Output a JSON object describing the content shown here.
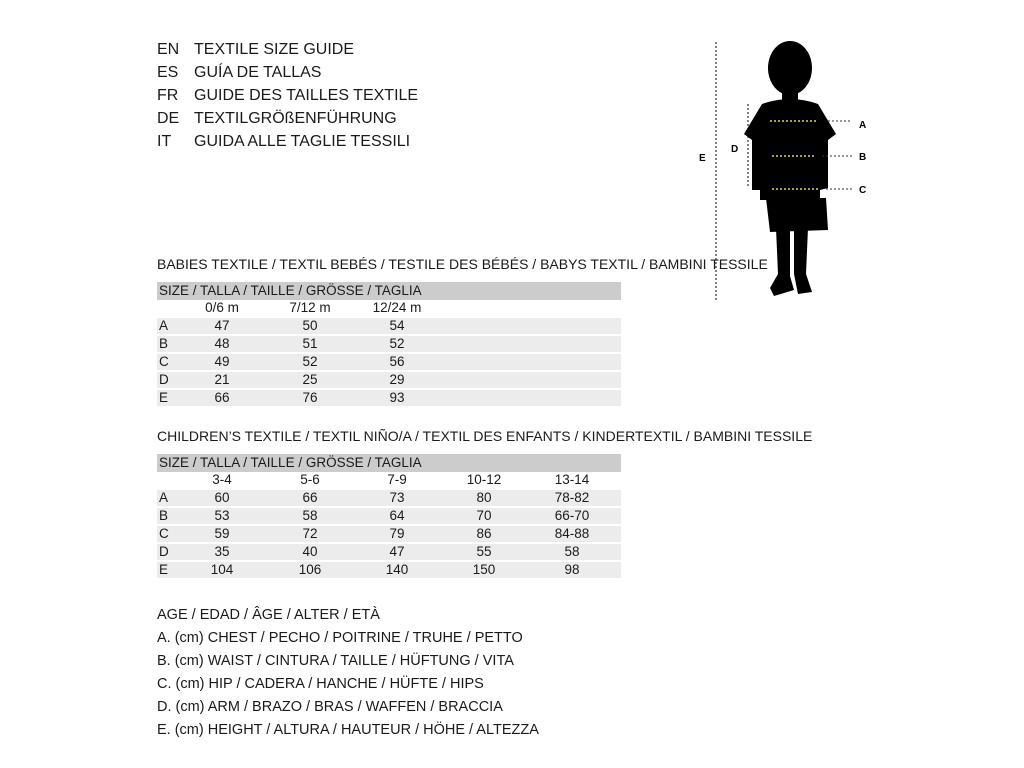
{
  "guide_titles": [
    {
      "lang": "EN",
      "title": "TEXTILE SIZE GUIDE"
    },
    {
      "lang": "ES",
      "title": "GUÍA DE TALLAS"
    },
    {
      "lang": "FR",
      "title": "GUIDE DES TAILLES TEXTILE"
    },
    {
      "lang": "DE",
      "title": "TEXTILGRÖßENFÜHRUNG"
    },
    {
      "lang": "IT",
      "title": "GUIDA ALLE TAGLIE TESSILI"
    }
  ],
  "figure": {
    "labels": {
      "A": "A",
      "B": "B",
      "C": "C",
      "D": "D",
      "E": "E"
    },
    "guide_color": "#e8d44a"
  },
  "babies": {
    "title": "BABIES TEXTILE / TEXTIL BEBÉS / TESTILE DES BÉBÉS / BABYS TEXTIL / BAMBINI TESSILE",
    "header": "SIZE / TALLA / TAILLE / GRÖSSE / TAGLIA",
    "columns": [
      "0/6 m",
      "7/12 m",
      "12/24 m"
    ],
    "rows": [
      {
        "label": "A",
        "values": [
          "47",
          "50",
          "54"
        ]
      },
      {
        "label": "B",
        "values": [
          "48",
          "51",
          "52"
        ]
      },
      {
        "label": "C",
        "values": [
          "49",
          "52",
          "56"
        ]
      },
      {
        "label": "D",
        "values": [
          "21",
          "25",
          "29"
        ]
      },
      {
        "label": "E",
        "values": [
          "66",
          "76",
          "93"
        ]
      }
    ]
  },
  "children": {
    "title": "CHILDREN’S TEXTILE / TEXTIL NIÑO/A / TEXTIL DES ENFANTS / KINDERTEXTIL / BAMBINI TESSILE",
    "header": "SIZE / TALLA / TAILLE / GRÖSSE / TAGLIA",
    "columns": [
      "3-4",
      "5-6",
      "7-9",
      "10-12",
      "13-14"
    ],
    "rows": [
      {
        "label": "A",
        "values": [
          "60",
          "66",
          "73",
          "80",
          "78-82"
        ]
      },
      {
        "label": "B",
        "values": [
          "53",
          "58",
          "64",
          "70",
          "66-70"
        ]
      },
      {
        "label": "C",
        "values": [
          "59",
          "72",
          "79",
          "86",
          "84-88"
        ]
      },
      {
        "label": "D",
        "values": [
          "35",
          "40",
          "47",
          "55",
          "58"
        ]
      },
      {
        "label": "E",
        "values": [
          "104",
          "106",
          "140",
          "150",
          "98"
        ]
      }
    ]
  },
  "legend": [
    "AGE / EDAD / ÂGE / ALTER / ETÀ",
    "A. (cm) CHEST / PECHO / POITRINE / TRUHE / PETTO",
    "B. (cm) WAIST / CINTURA / TAILLE / HÜFTUNG / VITA",
    "C. (cm) HIP / CADERA / HANCHE / HÜFTE / HIPS",
    "D. (cm) ARM / BRAZO / BRAS / WAFFEN / BRACCIA",
    "E. (cm) HEIGHT / ALTURA / HAUTEUR / HÖHE / ALTEZZA"
  ]
}
